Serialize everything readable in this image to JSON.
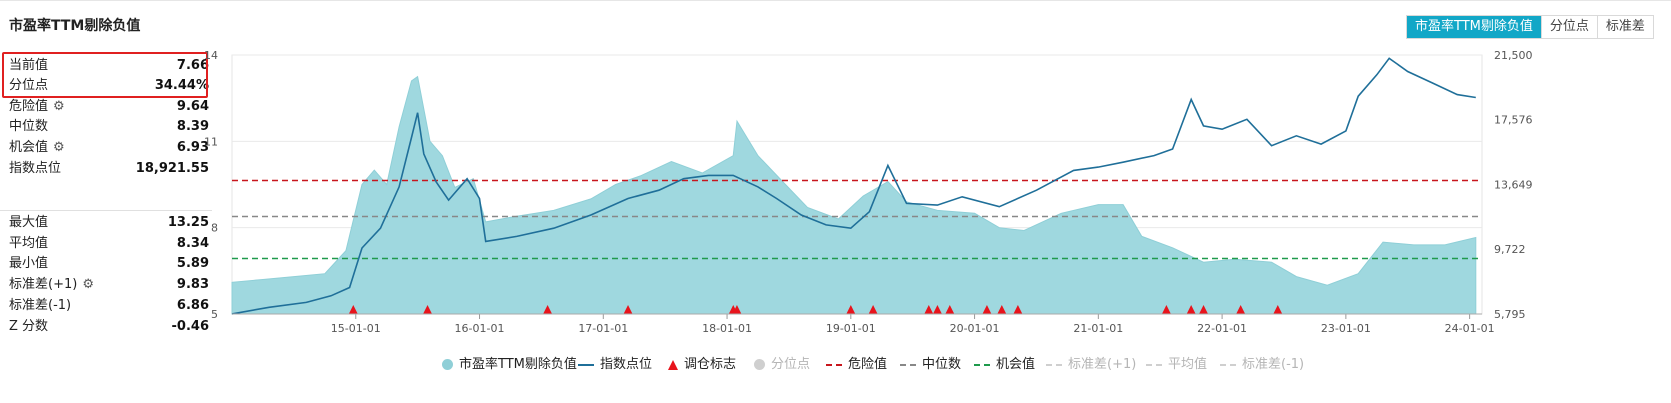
{
  "title": "市盈率TTM剔除负值",
  "tabs": [
    {
      "label": "市盈率TTM剔除负值",
      "active": true
    },
    {
      "label": "分位点",
      "active": false
    },
    {
      "label": "标准差",
      "active": false
    }
  ],
  "stats": {
    "current_label": "当前值",
    "current_value": "7.66",
    "percentile_label": "分位点",
    "percentile_value": "34.44%",
    "danger_label": "危险值",
    "danger_value": "9.64",
    "median_label": "中位数",
    "median_value": "8.39",
    "opportunity_label": "机会值",
    "opportunity_value": "6.93",
    "index_label": "指数点位",
    "index_value": "18,921.55",
    "max_label": "最大值",
    "max_value": "13.25",
    "mean_label": "平均值",
    "mean_value": "8.34",
    "min_label": "最小值",
    "min_value": "5.89",
    "sd_plus_label": "标准差(+1)",
    "sd_plus_value": "9.83",
    "sd_minus_label": "标准差(-1)",
    "sd_minus_value": "6.86",
    "z_label": "Z 分数",
    "z_value": "-0.46"
  },
  "legend": {
    "pe": "市盈率TTM剔除负值",
    "index": "指数点位",
    "rebalance": "调仓标志",
    "percentile": "分位点",
    "danger": "危险值",
    "median": "中位数",
    "opportunity": "机会值",
    "sd_plus": "标准差(+1)",
    "mean": "平均值",
    "sd_minus": "标准差(-1)"
  },
  "colors": {
    "area": "#9fd8df",
    "index_line": "#1f6f99",
    "danger": "#c8161d",
    "median": "#888888",
    "opportunity": "#1f9a4c",
    "marker": "#e8141c",
    "accent": "#12a7c7"
  },
  "chart_data": {
    "type": "area",
    "x_ticks": [
      "15-01-01",
      "16-01-01",
      "17-01-01",
      "18-01-01",
      "19-01-01",
      "20-01-01",
      "21-01-01",
      "22-01-01",
      "23-01-01",
      "24-01-01"
    ],
    "y_left_ticks": [
      "5",
      "8",
      "11",
      "14"
    ],
    "y_left_range": [
      5,
      14
    ],
    "y_right_ticks": [
      "5,795",
      "9,722",
      "13,649",
      "17,576",
      "21,500"
    ],
    "y_right_range": [
      5795,
      21500
    ],
    "x_range": [
      2014.0,
      2024.1
    ],
    "reference_lines": {
      "danger": 9.64,
      "median": 8.39,
      "opportunity": 6.93
    },
    "series": [
      {
        "name": "市盈率TTM剔除负值",
        "kind": "area",
        "axis": "left",
        "points": [
          [
            2014.0,
            6.1
          ],
          [
            2014.25,
            6.2
          ],
          [
            2014.5,
            6.3
          ],
          [
            2014.75,
            6.4
          ],
          [
            2014.92,
            7.2
          ],
          [
            2015.05,
            9.5
          ],
          [
            2015.15,
            10.0
          ],
          [
            2015.25,
            9.5
          ],
          [
            2015.35,
            11.5
          ],
          [
            2015.45,
            13.1
          ],
          [
            2015.5,
            13.25
          ],
          [
            2015.6,
            11.0
          ],
          [
            2015.7,
            10.5
          ],
          [
            2015.8,
            9.4
          ],
          [
            2015.95,
            9.7
          ],
          [
            2016.05,
            8.2
          ],
          [
            2016.3,
            8.4
          ],
          [
            2016.6,
            8.6
          ],
          [
            2016.9,
            9.0
          ],
          [
            2017.1,
            9.5
          ],
          [
            2017.3,
            9.8
          ],
          [
            2017.55,
            10.3
          ],
          [
            2017.8,
            9.9
          ],
          [
            2018.05,
            10.5
          ],
          [
            2018.08,
            11.7
          ],
          [
            2018.25,
            10.5
          ],
          [
            2018.45,
            9.6
          ],
          [
            2018.65,
            8.7
          ],
          [
            2018.9,
            8.3
          ],
          [
            2019.1,
            9.1
          ],
          [
            2019.3,
            9.6
          ],
          [
            2019.45,
            8.9
          ],
          [
            2019.7,
            8.6
          ],
          [
            2020.0,
            8.5
          ],
          [
            2020.2,
            8.0
          ],
          [
            2020.4,
            7.9
          ],
          [
            2020.7,
            8.5
          ],
          [
            2021.0,
            8.8
          ],
          [
            2021.2,
            8.8
          ],
          [
            2021.35,
            7.7
          ],
          [
            2021.6,
            7.3
          ],
          [
            2021.85,
            6.8
          ],
          [
            2022.1,
            6.9
          ],
          [
            2022.4,
            6.8
          ],
          [
            2022.6,
            6.3
          ],
          [
            2022.85,
            6.0
          ],
          [
            2023.1,
            6.4
          ],
          [
            2023.3,
            7.5
          ],
          [
            2023.55,
            7.4
          ],
          [
            2023.8,
            7.4
          ],
          [
            2024.05,
            7.66
          ]
        ]
      },
      {
        "name": "指数点位",
        "kind": "line",
        "axis": "right",
        "points": [
          [
            2014.0,
            5800
          ],
          [
            2014.3,
            6200
          ],
          [
            2014.6,
            6500
          ],
          [
            2014.8,
            6900
          ],
          [
            2014.95,
            7400
          ],
          [
            2015.05,
            9800
          ],
          [
            2015.2,
            11000
          ],
          [
            2015.35,
            13500
          ],
          [
            2015.45,
            16500
          ],
          [
            2015.5,
            18000
          ],
          [
            2015.55,
            15500
          ],
          [
            2015.65,
            13800
          ],
          [
            2015.75,
            12700
          ],
          [
            2015.9,
            14000
          ],
          [
            2016.0,
            12800
          ],
          [
            2016.05,
            10200
          ],
          [
            2016.3,
            10500
          ],
          [
            2016.6,
            11000
          ],
          [
            2016.9,
            11800
          ],
          [
            2017.2,
            12800
          ],
          [
            2017.45,
            13300
          ],
          [
            2017.65,
            14000
          ],
          [
            2017.85,
            14200
          ],
          [
            2018.05,
            14200
          ],
          [
            2018.25,
            13500
          ],
          [
            2018.4,
            12800
          ],
          [
            2018.6,
            11800
          ],
          [
            2018.8,
            11200
          ],
          [
            2019.0,
            11000
          ],
          [
            2019.15,
            12000
          ],
          [
            2019.3,
            14800
          ],
          [
            2019.45,
            12500
          ],
          [
            2019.7,
            12400
          ],
          [
            2019.9,
            12900
          ],
          [
            2020.2,
            12300
          ],
          [
            2020.5,
            13300
          ],
          [
            2020.8,
            14500
          ],
          [
            2021.0,
            14700
          ],
          [
            2021.2,
            15000
          ],
          [
            2021.45,
            15400
          ],
          [
            2021.6,
            15800
          ],
          [
            2021.75,
            18800
          ],
          [
            2021.85,
            17200
          ],
          [
            2022.0,
            17000
          ],
          [
            2022.2,
            17600
          ],
          [
            2022.4,
            16000
          ],
          [
            2022.6,
            16600
          ],
          [
            2022.8,
            16100
          ],
          [
            2023.0,
            16900
          ],
          [
            2023.1,
            19000
          ],
          [
            2023.25,
            20300
          ],
          [
            2023.35,
            21300
          ],
          [
            2023.5,
            20500
          ],
          [
            2023.7,
            19800
          ],
          [
            2023.9,
            19100
          ],
          [
            2024.05,
            18921.55
          ]
        ]
      }
    ],
    "markers": {
      "name": "调仓标志",
      "x": [
        2014.98,
        2015.58,
        2016.55,
        2017.2,
        2018.05,
        2018.08,
        2019.0,
        2019.18,
        2019.63,
        2019.7,
        2019.8,
        2020.1,
        2020.22,
        2020.35,
        2021.55,
        2021.75,
        2021.85,
        2022.15,
        2022.45
      ]
    }
  }
}
